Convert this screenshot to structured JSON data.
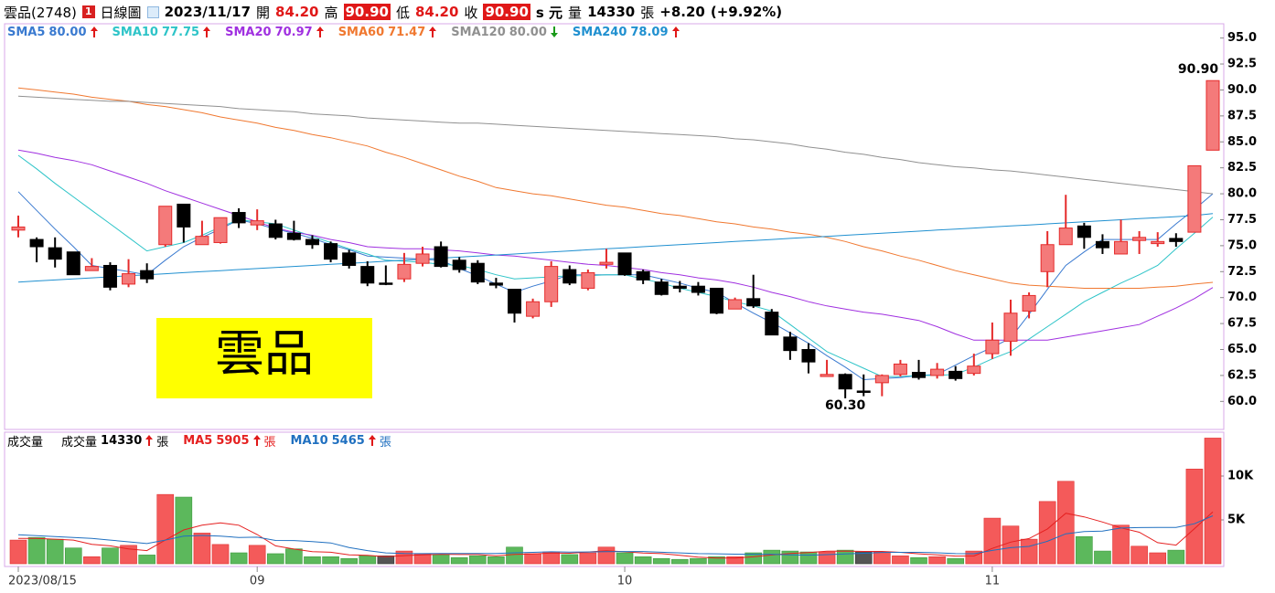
{
  "header": {
    "symbol": "雲品(2748)",
    "badge": "1",
    "view": "日線圖",
    "date": "2023/11/17",
    "open_label": "開",
    "open": "84.20",
    "high_label": "高",
    "high": "90.90",
    "low_label": "低",
    "low": "84.20",
    "close_label": "收",
    "close": "90.90",
    "unit": "s 元",
    "volume_label": "量",
    "volume": "14330",
    "volume_unit": "張",
    "change": "+8.20",
    "change_pct": "(+9.92%)"
  },
  "stamp": "雲品",
  "chart_data": [
    {
      "type": "candlestick",
      "up_color": "#e52b2b",
      "up_fill": "#f47a7a",
      "down_color": "#000000",
      "ylim": [
        57.3,
        96.2
      ],
      "yticks": [
        {
          "value": 60,
          "label": "60.0"
        },
        {
          "value": 62.5,
          "label": "62.5"
        },
        {
          "value": 65,
          "label": "65.0"
        },
        {
          "value": 67.5,
          "label": "67.5"
        },
        {
          "value": 70,
          "label": "70.0"
        },
        {
          "value": 72.5,
          "label": "72.5"
        },
        {
          "value": 75,
          "label": "75.0"
        },
        {
          "value": 77.5,
          "label": "77.5"
        },
        {
          "value": 80,
          "label": "80.0"
        },
        {
          "value": 82.5,
          "label": "82.5"
        },
        {
          "value": 85,
          "label": "85.0"
        },
        {
          "value": 87.5,
          "label": "87.5"
        },
        {
          "value": 90,
          "label": "90.0"
        },
        {
          "value": 92.5,
          "label": "92.5"
        },
        {
          "value": 95,
          "label": "95.0"
        }
      ],
      "high_label": "90.90",
      "low_label": "60.30",
      "open": [
        76.5,
        75.6,
        74.8,
        74.4,
        72.6,
        73.1,
        71.3,
        72.6,
        75.1,
        79.0,
        75.1,
        75.3,
        78.2,
        77.0,
        77.1,
        76.2,
        75.6,
        75.2,
        74.3,
        73.0,
        71.4,
        71.8,
        73.3,
        74.9,
        73.6,
        73.3,
        71.4,
        70.8,
        68.2,
        69.6,
        72.7,
        70.9,
        73.2,
        74.3,
        72.5,
        71.5,
        71.1,
        71.1,
        70.9,
        68.9,
        69.9,
        68.6,
        66.2,
        65.0,
        62.4,
        62.6,
        61.0,
        61.8,
        62.6,
        62.8,
        62.5,
        62.9,
        62.7,
        64.6,
        65.8,
        68.7,
        72.5,
        75.1,
        76.9,
        75.4,
        74.2,
        75.5,
        75.2,
        75.7,
        76.3,
        84.2
      ],
      "high": [
        77.9,
        75.8,
        75.8,
        74.4,
        73.8,
        73.4,
        73.7,
        73.3,
        78.8,
        79.0,
        77.4,
        77.7,
        78.6,
        78.5,
        77.5,
        77.4,
        76.0,
        75.4,
        74.6,
        73.5,
        73.1,
        74.3,
        74.9,
        75.4,
        73.9,
        73.6,
        71.9,
        70.8,
        69.9,
        73.5,
        73.1,
        72.7,
        74.7,
        74.3,
        72.7,
        71.8,
        71.6,
        71.5,
        70.9,
        70.0,
        72.2,
        68.9,
        66.7,
        65.6,
        64.0,
        62.7,
        62.6,
        62.6,
        64.0,
        64.0,
        63.7,
        63.4,
        64.6,
        67.6,
        69.8,
        70.5,
        76.4,
        79.9,
        77.2,
        76.1,
        77.5,
        76.4,
        76.3,
        76.2,
        82.7,
        90.9
      ],
      "low": [
        75.8,
        73.4,
        72.9,
        72.2,
        72.6,
        70.7,
        71.0,
        71.4,
        74.9,
        75.3,
        75.1,
        75.2,
        76.7,
        76.5,
        75.6,
        75.5,
        74.7,
        73.4,
        72.8,
        71.1,
        71.2,
        71.5,
        73.0,
        72.9,
        72.4,
        71.3,
        70.9,
        67.6,
        68.0,
        69.1,
        71.2,
        70.7,
        72.8,
        72.1,
        71.3,
        70.2,
        70.5,
        70.2,
        68.4,
        68.9,
        69.0,
        66.4,
        64.0,
        62.7,
        62.4,
        60.3,
        60.5,
        60.5,
        62.4,
        62.1,
        62.2,
        62.0,
        62.5,
        64.1,
        64.4,
        68.0,
        71.0,
        75.1,
        74.7,
        74.2,
        74.2,
        74.2,
        74.9,
        74.9,
        76.3,
        84.2
      ],
      "close": [
        76.8,
        74.9,
        73.7,
        72.2,
        73.0,
        71.0,
        72.3,
        71.8,
        78.8,
        76.8,
        75.9,
        77.7,
        77.2,
        77.4,
        75.8,
        75.6,
        75.1,
        73.7,
        73.1,
        71.4,
        71.4,
        73.2,
        74.2,
        73.0,
        72.7,
        71.5,
        71.2,
        68.5,
        69.6,
        73.0,
        71.4,
        72.4,
        73.4,
        72.2,
        71.7,
        70.3,
        70.9,
        70.5,
        68.5,
        69.8,
        69.2,
        66.4,
        64.9,
        63.8,
        62.6,
        61.2,
        61.0,
        62.5,
        63.6,
        62.3,
        63.1,
        62.2,
        63.4,
        65.9,
        68.5,
        70.2,
        75.1,
        76.7,
        75.8,
        74.8,
        75.4,
        75.8,
        75.4,
        75.4,
        82.7,
        90.9
      ],
      "series": [
        {
          "name": "SMA5",
          "value_label": "80.00",
          "trend": "up",
          "color": "#3a7ad0",
          "values": [
            80.2,
            78.4,
            76.6,
            74.9,
            73.1,
            72.8,
            72.5,
            72.2,
            73.6,
            74.9,
            75.8,
            76.6,
            77.5,
            77.1,
            76.6,
            76.2,
            75.7,
            75.1,
            74.6,
            74.0,
            73.9,
            73.8,
            73.7,
            73.6,
            72.8,
            72.1,
            71.3,
            70.5,
            71.1,
            71.6,
            72.2,
            72.2,
            72.2,
            72.2,
            72.2,
            71.8,
            71.4,
            70.9,
            70.5,
            69.5,
            68.5,
            67.6,
            66.6,
            65.6,
            64.4,
            63.3,
            62.1,
            62.2,
            62.3,
            62.5,
            62.6,
            63.5,
            64.4,
            65.2,
            66.1,
            68.4,
            70.8,
            73.1,
            74.4,
            75.6,
            75.6,
            75.6,
            75.6,
            77.1,
            78.5,
            80.0
          ]
        },
        {
          "name": "SMA10",
          "value_label": "77.75",
          "trend": "up",
          "color": "#2ec4c8",
          "values": [
            83.7,
            82.4,
            81.0,
            79.7,
            78.4,
            77.1,
            75.8,
            74.5,
            74.9,
            75.3,
            76.0,
            76.8,
            77.5,
            77.3,
            77.1,
            76.5,
            75.9,
            75.3,
            74.7,
            74.2,
            73.6,
            73.5,
            73.4,
            73.2,
            73.1,
            72.7,
            72.2,
            71.8,
            71.9,
            72.0,
            72.1,
            72.1,
            72.2,
            72.2,
            71.8,
            71.4,
            70.9,
            70.5,
            70.1,
            69.6,
            69.2,
            68.7,
            67.4,
            66.1,
            64.8,
            64.0,
            63.2,
            62.4,
            62.4,
            62.5,
            62.5,
            62.6,
            63.3,
            64.1,
            64.8,
            66.0,
            67.2,
            68.4,
            69.6,
            70.5,
            71.4,
            72.2,
            73.1,
            74.7,
            76.2,
            77.75
          ]
        },
        {
          "name": "SMA20",
          "value_label": "70.97",
          "trend": "up",
          "color": "#a030e0",
          "values": [
            84.2,
            83.9,
            83.5,
            83.2,
            82.8,
            82.2,
            81.6,
            81.0,
            80.3,
            79.7,
            79.1,
            78.5,
            77.9,
            77.3,
            76.7,
            76.3,
            76.0,
            75.6,
            75.3,
            74.9,
            74.8,
            74.7,
            74.7,
            74.6,
            74.5,
            74.3,
            74.1,
            74.0,
            73.8,
            73.6,
            73.4,
            73.2,
            73.1,
            72.9,
            72.7,
            72.4,
            72.2,
            71.9,
            71.7,
            71.4,
            71.0,
            70.5,
            70.1,
            69.6,
            69.2,
            68.9,
            68.6,
            68.4,
            68.1,
            67.8,
            67.2,
            66.5,
            65.9,
            65.9,
            65.9,
            65.9,
            65.9,
            66.2,
            66.5,
            66.8,
            67.1,
            67.4,
            68.2,
            69.0,
            69.9,
            70.97
          ]
        },
        {
          "name": "SMA60",
          "value_label": "71.47",
          "trend": "up",
          "color": "#f07830",
          "values": [
            90.2,
            90.0,
            89.8,
            89.6,
            89.3,
            89.1,
            88.9,
            88.6,
            88.4,
            88.1,
            87.8,
            87.4,
            87.1,
            86.8,
            86.4,
            86.1,
            85.7,
            85.4,
            85.0,
            84.6,
            84.0,
            83.5,
            82.9,
            82.3,
            81.7,
            81.2,
            80.6,
            80.3,
            80.0,
            79.8,
            79.5,
            79.2,
            78.9,
            78.7,
            78.4,
            78.1,
            77.9,
            77.6,
            77.3,
            77.1,
            76.8,
            76.6,
            76.3,
            76.1,
            75.8,
            75.4,
            74.9,
            74.5,
            74.0,
            73.6,
            73.1,
            72.6,
            72.2,
            71.8,
            71.4,
            71.2,
            71.1,
            71.0,
            70.9,
            70.9,
            70.9,
            70.9,
            71.0,
            71.1,
            71.3,
            71.47
          ]
        },
        {
          "name": "SMA120",
          "value_label": "80.00",
          "trend": "down",
          "color": "#909090",
          "values": [
            89.4,
            89.3,
            89.2,
            89.1,
            89.0,
            88.9,
            88.9,
            88.8,
            88.7,
            88.6,
            88.5,
            88.4,
            88.2,
            88.1,
            88.0,
            87.9,
            87.7,
            87.6,
            87.5,
            87.3,
            87.2,
            87.1,
            87.0,
            86.9,
            86.8,
            86.8,
            86.7,
            86.6,
            86.5,
            86.4,
            86.3,
            86.2,
            86.1,
            86.0,
            85.9,
            85.8,
            85.7,
            85.6,
            85.5,
            85.3,
            85.2,
            85.0,
            84.8,
            84.5,
            84.3,
            84.0,
            83.8,
            83.5,
            83.3,
            83.0,
            82.8,
            82.6,
            82.5,
            82.3,
            82.2,
            82.0,
            81.8,
            81.6,
            81.4,
            81.2,
            81.0,
            80.8,
            80.6,
            80.4,
            80.2,
            80.0
          ]
        },
        {
          "name": "SMA240",
          "value_label": "78.09",
          "trend": "up",
          "color": "#2090d0",
          "values": [
            71.5,
            71.6,
            71.7,
            71.8,
            71.9,
            72.0,
            72.1,
            72.2,
            72.3,
            72.4,
            72.5,
            72.6,
            72.7,
            72.8,
            72.9,
            73.0,
            73.1,
            73.2,
            73.3,
            73.4,
            73.5,
            73.6,
            73.7,
            73.8,
            73.9,
            74.0,
            74.1,
            74.2,
            74.3,
            74.4,
            74.5,
            74.6,
            74.7,
            74.8,
            74.9,
            75.0,
            75.1,
            75.2,
            75.3,
            75.4,
            75.5,
            75.6,
            75.7,
            75.8,
            75.9,
            76.0,
            76.1,
            76.2,
            76.3,
            76.4,
            76.5,
            76.6,
            76.7,
            76.8,
            76.9,
            77.0,
            77.1,
            77.2,
            77.3,
            77.4,
            77.5,
            77.6,
            77.7,
            77.8,
            77.9,
            78.09
          ]
        }
      ]
    },
    {
      "type": "bar",
      "title": "成交量",
      "series_label": "成交量",
      "value_label": "14330",
      "unit": "張",
      "trend": "up",
      "up_color": "#f45a5a",
      "down_color": "#5cb85c",
      "flat_color": "#555555",
      "ylim": [
        0,
        15000
      ],
      "yticks": [
        {
          "value": 5000,
          "label": "5K"
        },
        {
          "value": 10000,
          "label": "10K"
        }
      ],
      "categories": [
        "2023/08/15",
        null,
        null,
        null,
        null,
        null,
        null,
        null,
        null,
        null,
        null,
        null,
        null,
        "09",
        null,
        null,
        null,
        null,
        null,
        null,
        null,
        null,
        null,
        null,
        null,
        null,
        null,
        null,
        null,
        null,
        null,
        null,
        null,
        "10",
        null,
        null,
        null,
        null,
        null,
        null,
        null,
        null,
        null,
        null,
        null,
        null,
        null,
        null,
        null,
        null,
        null,
        null,
        null,
        "11",
        null,
        null,
        null,
        null,
        null,
        null,
        null,
        null,
        null,
        null,
        null,
        null
      ],
      "values": [
        2700,
        3000,
        2800,
        1800,
        800,
        1800,
        2100,
        1000,
        7900,
        7600,
        3500,
        2200,
        1250,
        2100,
        1150,
        1700,
        800,
        800,
        600,
        900,
        900,
        1450,
        1150,
        1050,
        700,
        900,
        800,
        1900,
        1150,
        1350,
        1050,
        1250,
        1900,
        1250,
        800,
        600,
        500,
        600,
        800,
        800,
        1250,
        1550,
        1450,
        1350,
        1350,
        1550,
        1350,
        1350,
        900,
        700,
        800,
        600,
        1450,
        5200,
        4300,
        2800,
        7100,
        9400,
        3100,
        1450,
        4400,
        2000,
        1250,
        1550,
        10800,
        14330
      ],
      "series": [
        {
          "name": "MA5",
          "value_label": "5905",
          "unit": "張",
          "trend": "up",
          "color": "#e52020",
          "values": [
            2900,
            2900,
            2800,
            2700,
            2220,
            2040,
            1700,
            1500,
            2700,
            3850,
            4400,
            4660,
            4400,
            3330,
            2040,
            1680,
            1380,
            1310,
            1010,
            960,
            800,
            930,
            1010,
            1080,
            1050,
            1050,
            920,
            1070,
            1110,
            1220,
            1200,
            1340,
            1490,
            1360,
            1230,
            1160,
            970,
            750,
            660,
            660,
            790,
            1000,
            1170,
            1270,
            1430,
            1450,
            1410,
            1410,
            1300,
            1140,
            1010,
            870,
            890,
            1750,
            2470,
            2870,
            3970,
            5760,
            5340,
            4760,
            4090,
            3590,
            2410,
            2130,
            4000,
            5905
          ]
        },
        {
          "name": "MA10",
          "value_label": "5465",
          "unit": "張",
          "trend": "up",
          "color": "#2070c0",
          "values": [
            3300,
            3200,
            3100,
            3000,
            2900,
            2700,
            2500,
            2300,
            2700,
            3150,
            3230,
            3150,
            3000,
            3030,
            2660,
            2650,
            2520,
            2380,
            1850,
            1500,
            1240,
            1170,
            1160,
            1180,
            1170,
            1180,
            1180,
            1250,
            1300,
            1360,
            1330,
            1340,
            1380,
            1400,
            1400,
            1310,
            1240,
            1160,
            1140,
            1090,
            1080,
            1080,
            1010,
            980,
            1040,
            1120,
            1200,
            1290,
            1300,
            1300,
            1250,
            1160,
            1150,
            1520,
            1830,
            1980,
            2560,
            3420,
            3670,
            3720,
            4070,
            4130,
            4150,
            4150,
            4560,
            5465
          ]
        }
      ]
    }
  ]
}
